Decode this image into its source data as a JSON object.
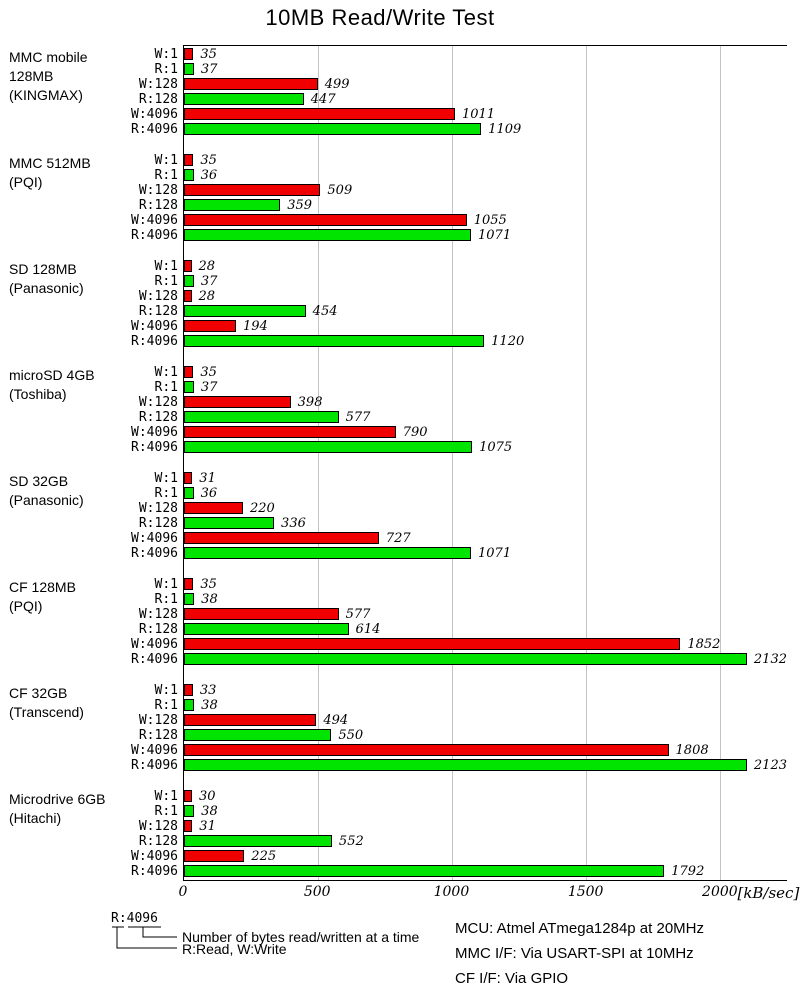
{
  "title": "10MB Read/Write Test",
  "axis": {
    "tick_values": [
      0,
      500,
      1000,
      1500,
      2000
    ],
    "tick_labels": [
      "0",
      "500",
      "1000",
      "1500",
      "2000"
    ],
    "unit": "[kB/sec]",
    "max": 2250
  },
  "legend": {
    "sample": "R:4096",
    "line1": "Number of bytes read/written at a time",
    "line2": "R:Read, W:Write"
  },
  "notes": [
    "MCU: Atmel ATmega1284p at 20MHz",
    "MMC I/F: Via USART-SPI at 10MHz",
    "CF I/F: Via GPIO"
  ],
  "colors": {
    "write_bar": "#f00000",
    "read_bar": "#00e400",
    "gridline": "#c4c4c4"
  },
  "chart_data": {
    "type": "bar",
    "orientation": "horizontal",
    "title": "10MB Read/Write Test",
    "xlabel": "[kB/sec]",
    "xlim": [
      0,
      2250
    ],
    "grid": "vertical at 500,1000,1500,2000",
    "legend_position": "bottom-left",
    "bar_categories": [
      "W:1",
      "R:1",
      "W:128",
      "R:128",
      "W:4096",
      "R:4096"
    ],
    "series_colors": {
      "write": "#f00000",
      "read": "#00e400"
    },
    "groups": [
      {
        "name": "MMC mobile 128MB",
        "vendor": "(KINGMAX)",
        "values": [
          35,
          37,
          499,
          447,
          1011,
          1109
        ]
      },
      {
        "name": "MMC 512MB",
        "vendor": "(PQI)",
        "values": [
          35,
          36,
          509,
          359,
          1055,
          1071
        ]
      },
      {
        "name": "SD 128MB",
        "vendor": "(Panasonic)",
        "values": [
          28,
          37,
          28,
          454,
          194,
          1120
        ]
      },
      {
        "name": "microSD 4GB",
        "vendor": "(Toshiba)",
        "values": [
          35,
          37,
          398,
          577,
          790,
          1075
        ]
      },
      {
        "name": "SD 32GB",
        "vendor": "(Panasonic)",
        "values": [
          31,
          36,
          220,
          336,
          727,
          1071
        ]
      },
      {
        "name": "CF 128MB",
        "vendor": "(PQI)",
        "values": [
          35,
          38,
          577,
          614,
          1852,
          2132
        ]
      },
      {
        "name": "CF 32GB",
        "vendor": "(Transcend)",
        "values": [
          33,
          38,
          494,
          550,
          1808,
          2123
        ]
      },
      {
        "name": "Microdrive 6GB",
        "vendor": "(Hitachi)",
        "values": [
          30,
          38,
          31,
          552,
          225,
          1792
        ]
      }
    ]
  }
}
